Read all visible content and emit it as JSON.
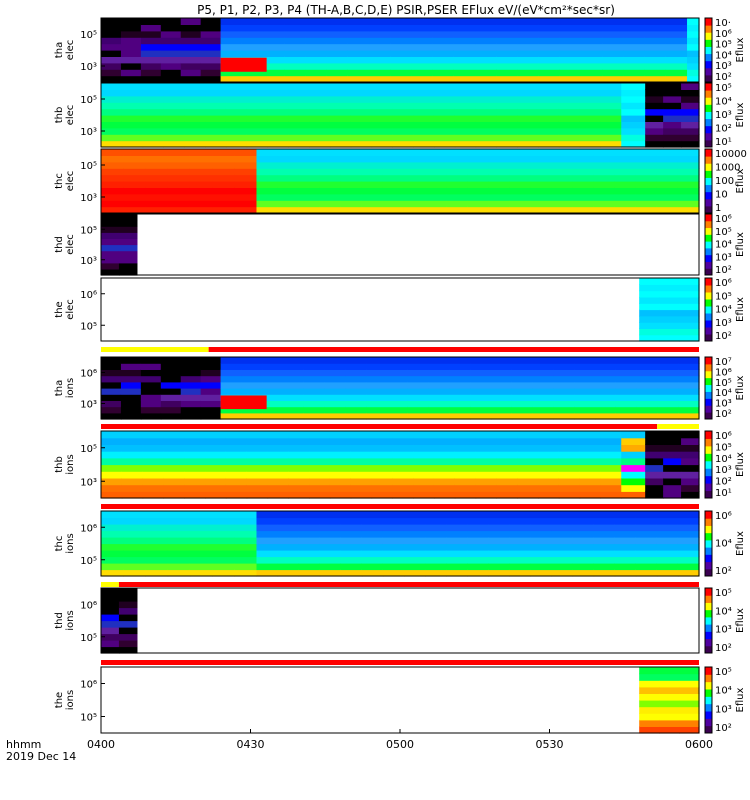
{
  "chart_data": {
    "type": "heatmap",
    "title": "P5, P1, P2, P3, P4 (TH-A,B,C,D,E) PSIR,PSER EFlux eV/(eV*cm²*sec*sr)",
    "x_ticks": [
      "0400",
      "0430",
      "0500",
      "0530",
      "0600"
    ],
    "x_range": [
      "0400",
      "0600"
    ],
    "x_label_line1": "hhmm",
    "x_label_line2": "2019 Dec 14",
    "colorbar_label": "Eflux",
    "panels": [
      {
        "name": "tha-elec",
        "ylabel": [
          "tha",
          "elec"
        ],
        "y_ticks": [
          "10⁵",
          "10³"
        ],
        "colorbar_ticks": [
          "10·",
          "10⁶",
          "10⁵",
          "10⁴",
          "10³",
          "10²"
        ],
        "segments": [
          [
            0,
            0.2,
            "magma"
          ],
          [
            0.2,
            0.98,
            "cool"
          ],
          [
            0.98,
            1,
            "cyan"
          ]
        ],
        "mode_bar": null
      },
      {
        "name": "thb-elec",
        "ylabel": [
          "thb",
          "elec"
        ],
        "y_ticks": [
          "10⁵",
          "10³"
        ],
        "colorbar_ticks": [
          "10⁵",
          "10⁴",
          "10³",
          "10²",
          "10¹"
        ],
        "segments": [
          [
            0,
            0.87,
            "green"
          ],
          [
            0.87,
            0.91,
            "cyan"
          ],
          [
            0.91,
            1,
            "magma"
          ]
        ],
        "mode_bar": null
      },
      {
        "name": "thc-elec",
        "ylabel": [
          "thc",
          "elec"
        ],
        "y_ticks": [
          "10⁵",
          "10³"
        ],
        "colorbar_ticks": [
          "10000",
          "1000",
          "100",
          "10",
          "1"
        ],
        "segments": [
          [
            0,
            0.26,
            "red"
          ],
          [
            0.26,
            1,
            "green"
          ]
        ],
        "mode_bar": null
      },
      {
        "name": "thd-elec",
        "ylabel": [
          "thd",
          "elec"
        ],
        "y_ticks": [
          "10⁵",
          "10³"
        ],
        "colorbar_ticks": [
          "10⁶",
          "10⁵",
          "10⁴",
          "10³",
          "10²"
        ],
        "segments": [
          [
            0,
            0.06,
            "magma"
          ]
        ],
        "mode_bar": null
      },
      {
        "name": "the-elec",
        "ylabel": [
          "the",
          "elec"
        ],
        "y_ticks": [
          "10⁶",
          "10⁵"
        ],
        "colorbar_ticks": [
          "10⁶",
          "10⁵",
          "10⁴",
          "10³",
          "10²"
        ],
        "segments": [
          [
            0.9,
            1,
            "cyan"
          ]
        ],
        "mode_bar": {
          "segments": [
            [
              0,
              0.18,
              "#ffff00"
            ],
            [
              0.18,
              1,
              "#ff0000"
            ]
          ]
        }
      },
      {
        "name": "tha-ions",
        "ylabel": [
          "tha",
          "ions"
        ],
        "y_ticks": [
          "10⁶",
          "10³"
        ],
        "colorbar_ticks": [
          "10⁷",
          "10⁶",
          "10⁵",
          "10⁴",
          "10³",
          "10²"
        ],
        "segments": [
          [
            0,
            0.2,
            "magma"
          ],
          [
            0.2,
            1,
            "cool"
          ]
        ],
        "mode_bar": {
          "segments": [
            [
              0,
              0.93,
              "#ff0000"
            ],
            [
              0.93,
              1,
              "#ffff00"
            ]
          ]
        }
      },
      {
        "name": "thb-ions",
        "ylabel": [
          "thb",
          "ions"
        ],
        "y_ticks": [
          "10⁵",
          "10³"
        ],
        "colorbar_ticks": [
          "10⁶",
          "10⁵",
          "10⁴",
          "10³",
          "10²",
          "10¹"
        ],
        "segments": [
          [
            0,
            0.87,
            "warm"
          ],
          [
            0.87,
            0.91,
            "rainbow"
          ],
          [
            0.91,
            1,
            "magma"
          ]
        ],
        "mode_bar": {
          "segments": [
            [
              0,
              1,
              "#ff0000"
            ]
          ]
        }
      },
      {
        "name": "thc-ions",
        "ylabel": [
          "thc",
          "ions"
        ],
        "y_ticks": [
          "10⁶",
          "10⁵"
        ],
        "colorbar_ticks": [
          "10⁶",
          "10⁴",
          "10²"
        ],
        "segments": [
          [
            0,
            0.26,
            "green"
          ],
          [
            0.26,
            1,
            "cool"
          ]
        ],
        "mode_bar": {
          "segments": [
            [
              0,
              0.03,
              "#ffff00"
            ],
            [
              0.03,
              1,
              "#ff0000"
            ]
          ]
        }
      },
      {
        "name": "thd-ions",
        "ylabel": [
          "thd",
          "ions"
        ],
        "y_ticks": [
          "10⁶",
          "10⁵"
        ],
        "colorbar_ticks": [
          "10⁵",
          "10⁴",
          "10³",
          "10²"
        ],
        "segments": [
          [
            0,
            0.06,
            "magma"
          ]
        ],
        "mode_bar": {
          "segments": [
            [
              0,
              1,
              "#ff0000"
            ]
          ]
        }
      },
      {
        "name": "the-ions",
        "ylabel": [
          "the",
          "ions"
        ],
        "y_ticks": [
          "10⁶",
          "10⁵"
        ],
        "colorbar_ticks": [
          "10⁵",
          "10⁴",
          "10³",
          "10²"
        ],
        "segments": [
          [
            0.9,
            1,
            "yellow"
          ]
        ],
        "mode_bar": null
      }
    ]
  }
}
